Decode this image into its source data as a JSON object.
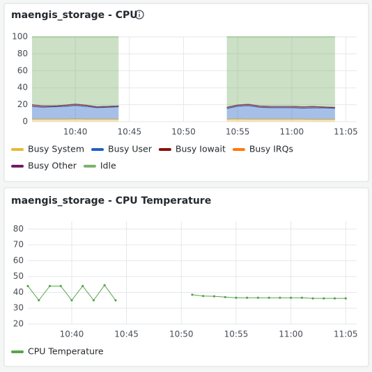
{
  "chart_data": [
    {
      "type": "area",
      "stacked": true,
      "title": "maengis_storage - CPU",
      "x": [
        "10:36",
        "10:37",
        "10:38",
        "10:39",
        "10:40",
        "10:41",
        "10:42",
        "10:43",
        "10:44",
        "10:45",
        "10:46",
        "10:47",
        "10:48",
        "10:49",
        "10:50",
        "10:51",
        "10:52",
        "10:53",
        "10:54",
        "10:55",
        "10:56",
        "10:57",
        "10:58",
        "10:59",
        "11:00",
        "11:01",
        "11:02",
        "11:03",
        "11:04"
      ],
      "xlim": [
        "10:36",
        "11:06"
      ],
      "xticks": [
        "10:40",
        "10:45",
        "10:50",
        "10:55",
        "11:00",
        "11:05"
      ],
      "ylim": [
        0,
        100
      ],
      "yticks": [
        0,
        20,
        40,
        60,
        80,
        100
      ],
      "grid": true,
      "series": [
        {
          "name": "Busy System",
          "color": "#EAB839",
          "values": [
            3,
            3,
            3,
            3,
            3.2,
            3,
            3,
            3,
            3,
            null,
            null,
            null,
            null,
            null,
            null,
            null,
            null,
            null,
            3,
            3.2,
            3,
            3,
            3,
            3,
            3,
            3,
            2.8,
            2.8,
            2.8
          ]
        },
        {
          "name": "Busy User",
          "color": "#1F60C4",
          "values": [
            15,
            14,
            14.5,
            15,
            16,
            15,
            13.5,
            14,
            14.5,
            null,
            null,
            null,
            null,
            null,
            null,
            null,
            null,
            null,
            12.5,
            15,
            16,
            14,
            13.5,
            13.5,
            13.5,
            13,
            13.5,
            13.5,
            13
          ]
        },
        {
          "name": "Busy Iowait",
          "color": "#890F02",
          "values": [
            2,
            1.5,
            1,
            1.5,
            1.5,
            1.5,
            1,
            1,
            1,
            null,
            null,
            null,
            null,
            null,
            null,
            null,
            null,
            null,
            1.5,
            1.5,
            1.5,
            1.5,
            1.5,
            1.5,
            1.5,
            1.5,
            1.5,
            1,
            1
          ]
        },
        {
          "name": "Busy IRQs",
          "color": "#FF780A",
          "values": [
            0,
            0,
            0,
            0,
            0,
            0,
            0,
            0,
            0,
            null,
            null,
            null,
            null,
            null,
            null,
            null,
            null,
            null,
            0,
            0,
            0,
            0,
            0,
            0,
            0,
            0,
            0,
            0,
            0
          ]
        },
        {
          "name": "Busy Other",
          "color": "#6D1F62",
          "values": [
            0,
            0,
            0,
            0,
            0,
            0,
            0,
            0,
            0,
            null,
            null,
            null,
            null,
            null,
            null,
            null,
            null,
            null,
            0,
            0,
            0,
            0,
            0,
            0,
            0,
            0,
            0,
            0,
            0
          ]
        },
        {
          "name": "Idle",
          "color": "#7EB26D",
          "values": [
            80,
            81.5,
            81.5,
            80.5,
            79.3,
            80.5,
            82.5,
            82,
            81.5,
            null,
            null,
            null,
            null,
            null,
            null,
            null,
            null,
            null,
            83,
            80.3,
            79.5,
            81.5,
            82,
            82,
            82,
            82.5,
            82.2,
            82.7,
            83.2
          ]
        }
      ]
    },
    {
      "type": "line",
      "title": "maengis_storage - CPU Temperature",
      "x": [
        "10:36",
        "10:37",
        "10:38",
        "10:39",
        "10:40",
        "10:41",
        "10:42",
        "10:43",
        "10:44",
        "10:45",
        "10:46",
        "10:47",
        "10:48",
        "10:49",
        "10:50",
        "10:51",
        "10:52",
        "10:53",
        "10:54",
        "10:55",
        "10:56",
        "10:57",
        "10:58",
        "10:59",
        "11:00",
        "11:01",
        "11:02",
        "11:03",
        "11:04",
        "11:05"
      ],
      "xlim": [
        "10:36",
        "11:06"
      ],
      "xticks": [
        "10:40",
        "10:45",
        "10:50",
        "10:55",
        "11:00",
        "11:05"
      ],
      "ylim": [
        20,
        85
      ],
      "yticks": [
        20,
        30,
        40,
        50,
        60,
        70,
        80
      ],
      "grid": true,
      "series": [
        {
          "name": "CPU Temperature",
          "color": "#56A64B",
          "values": [
            44,
            35,
            44,
            44,
            35,
            44,
            35,
            44.5,
            35,
            null,
            null,
            null,
            null,
            null,
            null,
            38.5,
            37.7,
            37.5,
            37,
            36.6,
            36.6,
            36.6,
            36.6,
            36.6,
            36.6,
            36.6,
            36.2,
            36.2,
            36.2,
            36.2
          ]
        }
      ]
    }
  ]
}
